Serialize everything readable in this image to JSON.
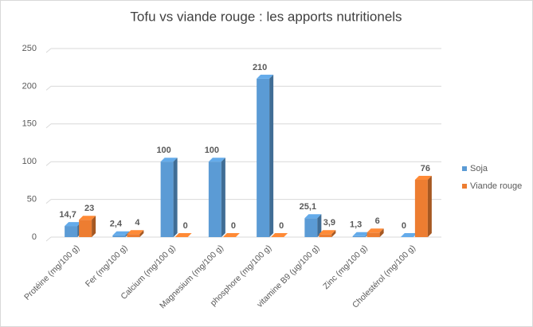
{
  "chart_data": {
    "type": "bar3d",
    "title": "Tofu vs viande rouge : les apports nutritionels",
    "categories": [
      "Protéine (mg/100 g)",
      "Fer (mg/100 g)",
      "Calcium (mg/100 g)",
      "Magnesium (mg/100 g)",
      "phosphore (mg/100 g)",
      "vitamine B9 (µg/100 g)",
      "Zinc (mg/100 g)",
      "Cholestérol (mg/100 g)"
    ],
    "series": [
      {
        "name": "Soja",
        "color": "#5b9bd5",
        "values": [
          14.7,
          2.4,
          100,
          100,
          210,
          25.1,
          1.3,
          0
        ],
        "value_labels": [
          "14,7",
          "2,4",
          "100",
          "100",
          "210",
          "25,1",
          "1,3",
          "0"
        ],
        "label_colors": [
          "#00b050",
          "#00b050",
          "#00b050",
          "#00b050",
          "#00b050",
          "#00b050",
          "#00b050",
          "#00b050"
        ]
      },
      {
        "name": "Viande rouge",
        "color": "#ed7d31",
        "values": [
          23,
          4,
          0,
          0,
          0,
          3.9,
          6,
          76
        ],
        "value_labels": [
          "23",
          "4",
          "0",
          "0",
          "0",
          "3,9",
          "6",
          "76"
        ],
        "label_colors": [
          "#00b050",
          "#00b050",
          "#404040",
          "#404040",
          "#404040",
          "#404040",
          "#00b050",
          "#c00000"
        ]
      }
    ],
    "ylim": [
      0,
      250
    ],
    "yticks": [
      0,
      50,
      100,
      150,
      200,
      250
    ],
    "grid": true,
    "legend": "right"
  }
}
